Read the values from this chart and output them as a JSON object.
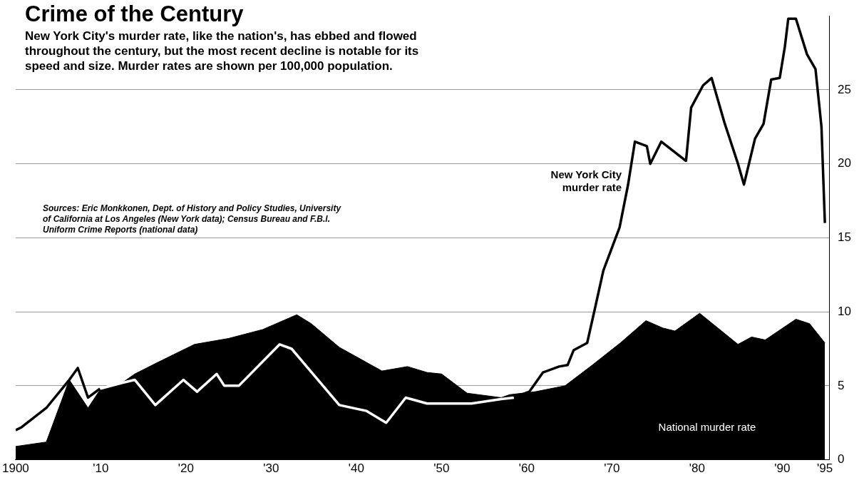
{
  "chart_data": {
    "type": "line",
    "title": "Crime of the Century",
    "subtitle": "New York City's murder rate, like the nation's, has ebbed and flowed throughout the century, but the most recent decline is notable for its speed and size. Murder rates are shown per 100,000 population.",
    "annotations": [
      "Sources: Eric Monkkonen, Dept. of History and Policy Studies, University of California at Los Angeles (New York data); Census Bureau and F.B.I. Uniform Crime Reports (national data)"
    ],
    "xlim": [
      1900,
      1995.5
    ],
    "xticks": [
      1900,
      {
        "value": 1910,
        "label": "'10"
      },
      {
        "value": 1920,
        "label": "'20"
      },
      {
        "value": 1930,
        "label": "'30"
      },
      {
        "value": 1940,
        "label": "'40"
      },
      {
        "value": 1950,
        "label": "'50"
      },
      {
        "value": 1960,
        "label": "'60"
      },
      {
        "value": 1970,
        "label": "'70"
      },
      {
        "value": 1980,
        "label": "'80"
      },
      {
        "value": 1990,
        "label": "'90"
      },
      {
        "value": 1995,
        "label": "'95"
      }
    ],
    "ylim": [
      0,
      30
    ],
    "yticks": [
      0,
      5,
      10,
      15,
      20,
      25
    ],
    "grid": "y",
    "legend": false,
    "series": [
      {
        "name": "National murder rate",
        "type": "area",
        "color": "#000000",
        "x": [
          1900,
          1903.6,
          1906.3,
          1908.5,
          1910,
          1912.5,
          1914,
          1916.4,
          1921,
          1925,
          1929,
          1933,
          1934.7,
          1938,
          1943,
          1946,
          1948.3,
          1950,
          1953,
          1957,
          1958,
          1961,
          1964.5,
          1967.7,
          1971,
          1974,
          1976,
          1977.4,
          1980.3,
          1984.8,
          1986.4,
          1988,
          1991.6,
          1993.2,
          1995
        ],
        "values": [
          0.9,
          1.2,
          5.4,
          3.5,
          4.8,
          5.2,
          5.8,
          6.5,
          7.8,
          8.2,
          8.8,
          9.8,
          9.2,
          7.6,
          6,
          6.3,
          5.9,
          5.8,
          4.5,
          4.2,
          4.4,
          4.6,
          5.0,
          6.4,
          7.9,
          9.4,
          8.9,
          8.7,
          9.9,
          7.8,
          8.3,
          8.1,
          9.5,
          9.2,
          7.9
        ]
      },
      {
        "name": "New York City murder rate",
        "color": "#000000",
        "x": [
          1900,
          1900.7,
          1903.6,
          1906.3,
          1907.3,
          1908.5,
          1909.9,
          1957,
          1958.5,
          1960.3,
          1961.9,
          1963.8,
          1964.8,
          1965.5,
          1967.1,
          1968,
          1969,
          1970.9,
          1971.9,
          1972.7,
          1974.1,
          1974.5,
          1975.8,
          1978.7,
          1979.3,
          1980.7,
          1981.7,
          1983.2,
          1984.8,
          1985.5,
          1986.8,
          1987.8,
          1988.7,
          1989.7,
          1990.3,
          1990.7,
          1991.6,
          1992.9,
          1993.9,
          1994.6,
          1995
        ],
        "values": [
          2.0,
          2.2,
          3.5,
          5.4,
          6.2,
          4.2,
          4.8,
          null,
          4.2,
          4.6,
          5.9,
          6.3,
          6.4,
          7.4,
          7.9,
          10.2,
          12.8,
          15.7,
          18.6,
          21.5,
          21.2,
          20.0,
          21.5,
          20.2,
          23.8,
          25.3,
          25.8,
          22.8,
          20.0,
          18.6,
          21.7,
          22.7,
          25.7,
          25.8,
          27.9,
          29.8,
          29.8,
          27.4,
          26.4,
          22.5,
          16.0
        ]
      },
      {
        "color": "#ffffff",
        "x": [
          1909.9,
          1912.5,
          1914,
          1916.4,
          1919.7,
          1921.3,
          1923.6,
          1924.5,
          1926.2,
          1931,
          1932.4,
          1938,
          1941.2,
          1943.5,
          1945.8,
          1948.3,
          1953.5,
          1957,
          1958.5
        ],
        "values": [
          4.8,
          5.2,
          5.4,
          3.7,
          5.4,
          4.6,
          5.8,
          5.0,
          5.0,
          7.8,
          7.5,
          3.7,
          3.3,
          2.5,
          4.2,
          3.8,
          3.8,
          4.1,
          4.2
        ]
      }
    ]
  }
}
